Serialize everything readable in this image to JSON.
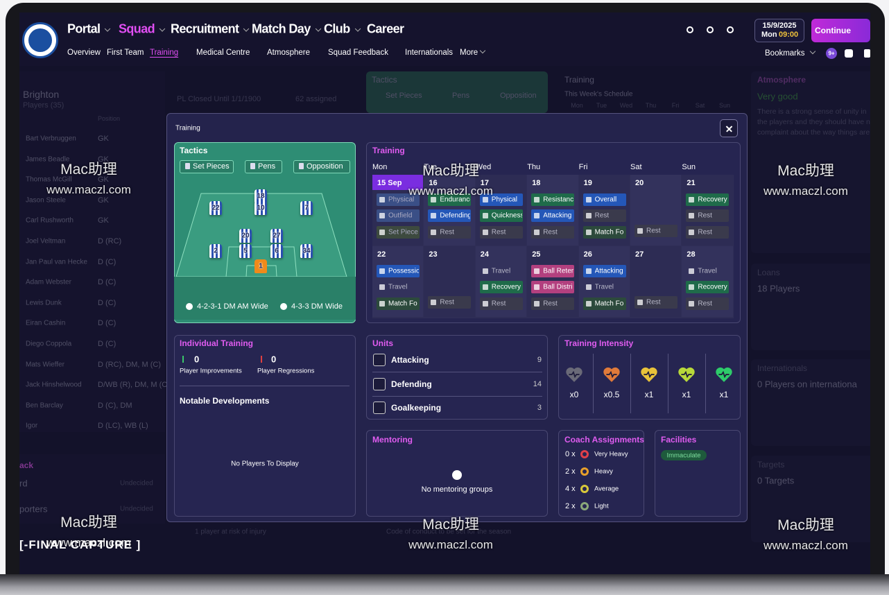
{
  "nav": {
    "items": [
      "Portal",
      "Squad",
      "Recruitment",
      "Match Day",
      "Club",
      "Career"
    ],
    "sub": [
      "Overview",
      "First Team",
      "Training",
      "Medical Centre",
      "Atmosphere",
      "Squad Feedback",
      "Internationals",
      "More"
    ],
    "date": "15/9/2025",
    "day": "Mon",
    "time": "09:00",
    "continue": "Continue",
    "bookmarks": "Bookmarks",
    "badge": "9+"
  },
  "background": {
    "club": "Brighton",
    "players_count": "Players (35)",
    "status": "PL Closed Until 1/1/1900",
    "assigned": "62 assigned",
    "position_header": "Position",
    "players": [
      [
        "Bart Verbruggen",
        "GK"
      ],
      [
        "James Beadle",
        "GK"
      ],
      [
        "Thomas McGill",
        "GK"
      ],
      [
        "Jason Steele",
        "GK"
      ],
      [
        "Carl Rushworth",
        "GK"
      ],
      [
        "Joel Veltman",
        "D (RC)"
      ],
      [
        "Jan Paul van Hecke",
        "D (C)"
      ],
      [
        "Adam Webster",
        "D (C)"
      ],
      [
        "Lewis Dunk",
        "D (C)"
      ],
      [
        "Eiran Cashin",
        "D (C)"
      ],
      [
        "Diego Coppola",
        "D (C)"
      ],
      [
        "Mats Wieffer",
        "D (RC), DM, M (C)"
      ],
      [
        "Jack Hinshelwood",
        "D/WB (R), DM, M (C)"
      ],
      [
        "Ben Barclay",
        "D (C), DM"
      ],
      [
        "Igor",
        "D (LC), WB (L)"
      ]
    ],
    "left_bottom": [
      "ack",
      "rd",
      "Undecided",
      "porters",
      "Undecided"
    ],
    "injury": "1 player at risk of injury",
    "tactics": {
      "title": "Tactics",
      "buttons": [
        "Set Pieces",
        "Pens",
        "Opposition"
      ]
    },
    "training": {
      "title": "Training",
      "subtitle": "This Week's Schedule",
      "days": [
        "Mon",
        "Tue",
        "Wed",
        "Thu",
        "Fri",
        "Sat",
        "Sun"
      ]
    },
    "conduct": "Code of conduct to be set for the season",
    "atmosphere": {
      "title": "Atmosphere",
      "status": "Very good",
      "text": "There is a strong sense of unity in the players and they should have no complaint about the way things are"
    },
    "loans": {
      "title": "Loans",
      "value": "18 Players"
    },
    "internationals": {
      "title": "Internationals",
      "value": "0 Players on internationa"
    },
    "targets": {
      "title": "Targets",
      "value": "0 Targets"
    }
  },
  "modal": {
    "title": "Training",
    "tactics": {
      "title": "Tactics",
      "buttons": [
        "Set Pieces",
        "Pens",
        "Opposition"
      ],
      "players": [
        22,
        18,
        10,
        7,
        20,
        27,
        2,
        5,
        6,
        34,
        1
      ],
      "formations": [
        "4-2-3-1 DM AM Wide",
        "4-3-3 DM Wide"
      ]
    },
    "training": {
      "title": "Training",
      "days": [
        "Mon",
        "Tue",
        "Wed",
        "Thu",
        "Fri",
        "Sat",
        "Sun"
      ],
      "weeks": [
        [
          {
            "date": "15 Sep",
            "sessions": [
              {
                "label": "Physical",
                "color": "#3a4f86"
              },
              {
                "label": "Outfield",
                "color": "#3a4f86"
              },
              {
                "label": "Set Piece",
                "color": "#3d4a3f"
              }
            ]
          },
          {
            "date": "16",
            "sessions": [
              {
                "label": "Endurance",
                "color": "#1f6b4a"
              },
              {
                "label": "Defending",
                "color": "#2457b8"
              },
              {
                "label": "Rest",
                "color": "#3a3a4c"
              }
            ]
          },
          {
            "date": "17",
            "sessions": [
              {
                "label": "Physical",
                "color": "#2457b8"
              },
              {
                "label": "Quickness",
                "color": "#1f6b4a"
              },
              {
                "label": "Rest",
                "color": "#3a3a4c"
              }
            ]
          },
          {
            "date": "18",
            "sessions": [
              {
                "label": "Resistance",
                "color": "#1f6b4a"
              },
              {
                "label": "Attacking",
                "color": "#2457b8"
              },
              {
                "label": "Rest",
                "color": "#3a3a4c"
              }
            ]
          },
          {
            "date": "19",
            "sessions": [
              {
                "label": "Overall",
                "color": "#2457b8"
              },
              {
                "label": "Rest",
                "color": "#3a3a4c"
              },
              {
                "label": "Match Fo",
                "color": "#2c4a3c"
              }
            ]
          },
          {
            "date": "20",
            "sessions": [
              {
                "label": "Rest",
                "color": "#3a3a4c"
              }
            ]
          },
          {
            "date": "21",
            "sessions": [
              {
                "label": "Recovery",
                "color": "#1f6b4a"
              },
              {
                "label": "Rest",
                "color": "#3a3a4c"
              },
              {
                "label": "Rest",
                "color": "#3a3a4c"
              }
            ]
          }
        ],
        [
          {
            "date": "22",
            "sessions": [
              {
                "label": "Possessio",
                "color": "#2457b8"
              },
              {
                "label": "Travel",
                "color": "transparent"
              },
              {
                "label": "Match Fo",
                "color": "#2c4a3c"
              }
            ]
          },
          {
            "date": "23",
            "sessions": [
              {
                "label": "Rest",
                "color": "#3a3a4c"
              }
            ]
          },
          {
            "date": "24",
            "sessions": [
              {
                "label": "Travel",
                "color": "transparent"
              },
              {
                "label": "Recovery",
                "color": "#1f6b4a"
              },
              {
                "label": "Rest",
                "color": "#3a3a4c"
              }
            ]
          },
          {
            "date": "25",
            "sessions": [
              {
                "label": "Ball Reten",
                "color": "#b3407f"
              },
              {
                "label": "Ball Distri",
                "color": "#b3407f"
              },
              {
                "label": "Rest",
                "color": "#3a3a4c"
              }
            ]
          },
          {
            "date": "26",
            "sessions": [
              {
                "label": "Attacking",
                "color": "#2457b8"
              },
              {
                "label": "Travel",
                "color": "transparent"
              },
              {
                "label": "Match Fo",
                "color": "#2c4a3c"
              }
            ]
          },
          {
            "date": "27",
            "sessions": [
              {
                "label": "Rest",
                "color": "#3a3a4c"
              }
            ]
          },
          {
            "date": "28",
            "sessions": [
              {
                "label": "Travel",
                "color": "transparent"
              },
              {
                "label": "Recovery",
                "color": "#1f6b4a"
              },
              {
                "label": "Rest",
                "color": "#3a3a4c"
              }
            ]
          }
        ]
      ]
    },
    "individual": {
      "title": "Individual Training",
      "improvements": 0,
      "improvements_label": "Player Improvements",
      "regressions": 0,
      "regressions_label": "Player Regressions",
      "notable": "Notable Developments",
      "empty": "No Players To Display"
    },
    "units": {
      "title": "Units",
      "rows": [
        {
          "name": "Attacking",
          "count": 9
        },
        {
          "name": "Defending",
          "count": 14
        },
        {
          "name": "Goalkeeping",
          "count": 3
        }
      ]
    },
    "intensity": {
      "title": "Training Intensity",
      "levels": [
        {
          "label": "x0",
          "color": "#6a6a78"
        },
        {
          "label": "x0.5",
          "color": "#e07a3a"
        },
        {
          "label": "x1",
          "color": "#e8c23a"
        },
        {
          "label": "x1",
          "color": "#b8d83a"
        },
        {
          "label": "x1",
          "color": "#2ecc6a"
        }
      ]
    },
    "mentoring": {
      "title": "Mentoring",
      "empty": "No mentoring groups"
    },
    "coach": {
      "title": "Coach Assignments",
      "rows": [
        {
          "count": "0 x",
          "label": "Very Heavy",
          "color": "#e0404a"
        },
        {
          "count": "2 x",
          "label": "Heavy",
          "color": "#e8a02a"
        },
        {
          "count": "4 x",
          "label": "Average",
          "color": "#d8c83a"
        },
        {
          "count": "2 x",
          "label": "Light",
          "color": "#8aa87a"
        }
      ]
    },
    "facilities": {
      "title": "Facilities",
      "status": "Immaculate"
    }
  },
  "watermark": {
    "brand": "Mac助理",
    "url": "www.maczl.com"
  },
  "capture_label": "[-FINAL CAPTURE ]"
}
